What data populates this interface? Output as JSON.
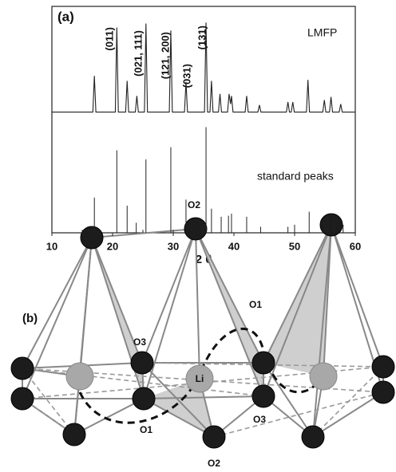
{
  "chart_data": {
    "type": "line",
    "panel_label": "(a)",
    "xlabel": "2 θ",
    "xlim": [
      10,
      60
    ],
    "xticks": [
      10,
      20,
      30,
      40,
      50,
      60
    ],
    "ylim": [
      0,
      225
    ],
    "grid": false,
    "annotations": [
      "(011)",
      "(021, 111)",
      "(121, 200)",
      "(031)",
      "(131)"
    ],
    "series": [
      {
        "name": "LMFP",
        "type": "line",
        "color": "#222222",
        "x": [
          10,
          16.75,
          17.0,
          17.25,
          20.45,
          20.7,
          20.95,
          22.15,
          22.4,
          22.65,
          23.75,
          24.0,
          24.25,
          25.25,
          25.5,
          25.75,
          29.35,
          29.6,
          29.85,
          31.85,
          32.1,
          32.35,
          35.15,
          35.4,
          35.65,
          36.05,
          36.3,
          36.55,
          37.45,
          37.7,
          37.95,
          38.95,
          39.2,
          39.45,
          39.6,
          39.85,
          41.85,
          42.1,
          42.35,
          43.95,
          44.2,
          44.45,
          48.65,
          48.9,
          49.15,
          49.45,
          49.7,
          49.95,
          51.95,
          52.2,
          52.45,
          54.65,
          54.9,
          55.15,
          55.75,
          56.0,
          56.25,
          57.35,
          57.6,
          57.85,
          60
        ],
        "values": [
          120,
          120,
          156,
          120,
          120,
          204,
          120,
          120,
          151,
          120,
          120,
          136,
          120,
          120,
          208,
          120,
          120,
          201,
          120,
          120,
          150,
          120,
          120,
          209,
          120,
          120,
          151,
          120,
          120,
          138,
          120,
          120,
          138,
          128,
          136,
          120,
          120,
          136,
          120,
          120,
          127,
          120,
          120,
          130,
          120,
          120,
          130,
          120,
          120,
          152,
          120,
          120,
          132,
          120,
          120,
          135,
          120,
          120,
          128,
          120,
          120
        ]
      },
      {
        "name": "standard peaks",
        "type": "stem",
        "color": "#222222",
        "x": [
          15.0,
          17.0,
          20.7,
          22.4,
          23.9,
          25.0,
          25.5,
          29.6,
          30.0,
          32.1,
          34.9,
          35.4,
          36.3,
          37.9,
          39.1,
          39.6,
          42.1,
          44.4,
          48.9,
          50.0,
          52.4,
          55.0,
          55.5,
          56.5,
          58.0
        ],
        "values": [
          3,
          35,
          82,
          27,
          10,
          3,
          73,
          85,
          3,
          33,
          6,
          105,
          24,
          16,
          17,
          19,
          16,
          6,
          6,
          8,
          21,
          13,
          16,
          13,
          8
        ]
      }
    ]
  },
  "structure": {
    "panel_label": "(b)",
    "labels": [
      "O2",
      "O3",
      "O1",
      "Li",
      "O1",
      "O3",
      "O2"
    ]
  }
}
